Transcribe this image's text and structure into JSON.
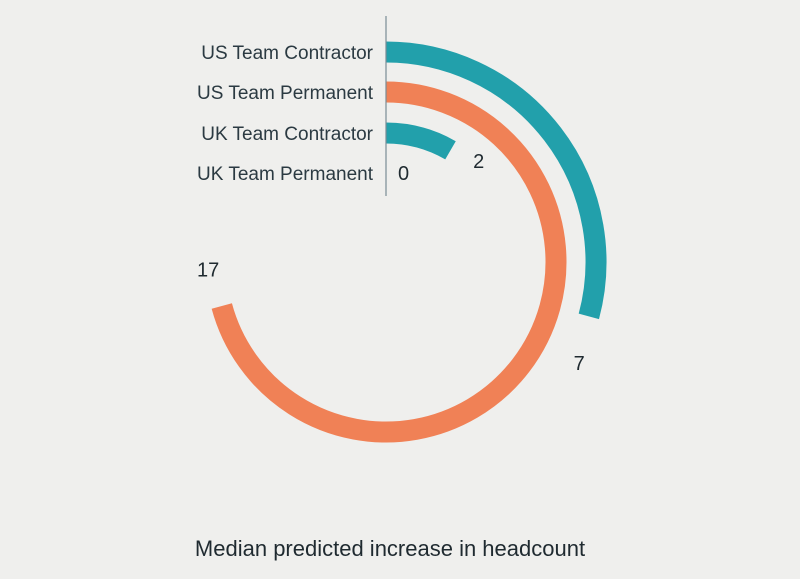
{
  "chart_data": {
    "type": "radial-bar",
    "xlabel": "Median predicted increase in headcount",
    "max": 24,
    "colors": {
      "contractor": "#22a0ab",
      "permanent": "#f08156",
      "axis": "#7a8c96"
    },
    "categories": [
      "US Team Contractor",
      "US Team Permanent",
      "UK Team Contractor",
      "UK Team Permanent"
    ],
    "values": [
      7,
      17,
      2,
      0
    ],
    "value_labels": [
      "7",
      "17",
      "2",
      "0"
    ],
    "bar_colors": [
      "#22a0ab",
      "#f08156",
      "#22a0ab",
      "#f08156"
    ]
  }
}
